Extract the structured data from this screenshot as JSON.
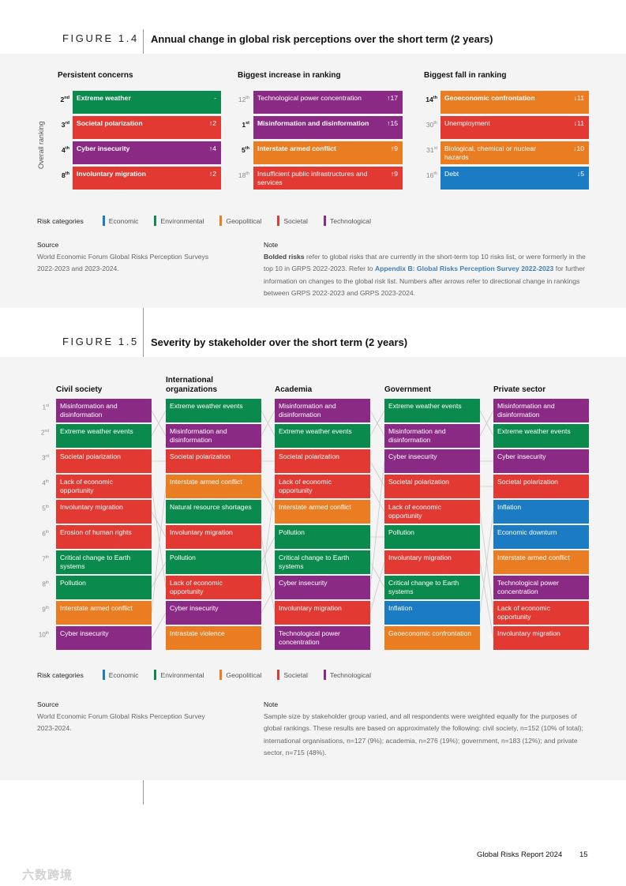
{
  "colors": {
    "economic": "#1b7cc4",
    "environmental": "#0a8a4c",
    "geopolitical": "#ea7d22",
    "societal": "#e23a33",
    "technological": "#8b2a85"
  },
  "fig14": {
    "label": "FIGURE 1.4",
    "title": "Annual change in global risk perceptions over the short term (2 years)",
    "y_axis": "Overall ranking",
    "columns": [
      {
        "heading": "Persistent concerns",
        "items": [
          {
            "rank": "2",
            "suffix": "nd",
            "label": "Extreme weather",
            "change": "-",
            "category": "environmental",
            "bold": true
          },
          {
            "rank": "3",
            "suffix": "rd",
            "label": "Societal polarization",
            "change": "↑2",
            "category": "societal",
            "bold": true
          },
          {
            "rank": "4",
            "suffix": "th",
            "label": "Cyber insecurity",
            "change": "↑4",
            "category": "technological",
            "bold": true
          },
          {
            "rank": "8",
            "suffix": "th",
            "label": "Involuntary migration",
            "change": "↑2",
            "category": "societal",
            "bold": true
          }
        ]
      },
      {
        "heading": "Biggest increase in ranking",
        "items": [
          {
            "rank": "12",
            "suffix": "th",
            "label": "Technological power concentration",
            "change": "↑17",
            "category": "technological",
            "bold": false
          },
          {
            "rank": "1",
            "suffix": "st",
            "label": "Misinformation and disinformation",
            "change": "↑15",
            "category": "technological",
            "bold": true
          },
          {
            "rank": "5",
            "suffix": "th",
            "label": "Interstate armed conflict",
            "change": "↑9",
            "category": "geopolitical",
            "bold": true
          },
          {
            "rank": "18",
            "suffix": "th",
            "label": "Insufficient public infrastructures and services",
            "change": "↑9",
            "category": "societal",
            "bold": false
          }
        ]
      },
      {
        "heading": "Biggest fall in ranking",
        "items": [
          {
            "rank": "14",
            "suffix": "th",
            "label": "Geoeconomic confrontation",
            "change": "↓11",
            "category": "geopolitical",
            "bold": true
          },
          {
            "rank": "30",
            "suffix": "th",
            "label": "Unemployment",
            "change": "↓11",
            "category": "societal",
            "bold": false
          },
          {
            "rank": "31",
            "suffix": "st",
            "label": "Biological, chemical or nuclear hazards",
            "change": "↓10",
            "category": "geopolitical",
            "bold": false
          },
          {
            "rank": "16",
            "suffix": "th",
            "label": "Debt",
            "change": "↓5",
            "category": "economic",
            "bold": false
          }
        ]
      }
    ],
    "legend": {
      "title": "Risk categories",
      "items": [
        "Economic",
        "Environmental",
        "Geopolitical",
        "Societal",
        "Technological"
      ]
    },
    "source": {
      "heading": "Source",
      "text": "World Economic Forum Global Risks Perception Surveys 2022-2023 and 2023-2024."
    },
    "note": {
      "heading": "Note",
      "bold_lead": "Bolded risks",
      "text1": " refer to global risks that are currently in the short-term top 10 risks list, or were formerly in the top 10 in GRPS 2022-2023. Refer to ",
      "link": "Appendix B: Global Risks Perception Survey 2022-2023",
      "text2": " for further information on changes to the global risk list. Numbers after arrows refer to directional change in rankings between GRPS 2022-2023 and GRPS 2023-2024."
    }
  },
  "fig15": {
    "label": "FIGURE 1.5",
    "title": "Severity by stakeholder over the short term (2 years)",
    "ranks": [
      {
        "n": "1",
        "s": "st"
      },
      {
        "n": "2",
        "s": "nd"
      },
      {
        "n": "3",
        "s": "rd"
      },
      {
        "n": "4",
        "s": "th"
      },
      {
        "n": "5",
        "s": "th"
      },
      {
        "n": "6",
        "s": "th"
      },
      {
        "n": "7",
        "s": "th"
      },
      {
        "n": "8",
        "s": "th"
      },
      {
        "n": "9",
        "s": "th"
      },
      {
        "n": "10",
        "s": "th"
      }
    ],
    "columns": [
      {
        "heading": "Civil society",
        "items": [
          {
            "label": "Misinformation and disinformation",
            "category": "technological"
          },
          {
            "label": "Extreme weather events",
            "category": "environmental"
          },
          {
            "label": "Societal polarization",
            "category": "societal"
          },
          {
            "label": "Lack of economic opportunity",
            "category": "societal"
          },
          {
            "label": "Involuntary migration",
            "category": "societal"
          },
          {
            "label": "Erosion of human rights",
            "category": "societal"
          },
          {
            "label": "Critical change to Earth systems",
            "category": "environmental"
          },
          {
            "label": "Pollution",
            "category": "environmental"
          },
          {
            "label": "Interstate armed conflict",
            "category": "geopolitical"
          },
          {
            "label": "Cyber insecurity",
            "category": "technological"
          }
        ]
      },
      {
        "heading": "International organizations",
        "items": [
          {
            "label": "Extreme weather events",
            "category": "environmental"
          },
          {
            "label": "Misinformation and disinformation",
            "category": "technological"
          },
          {
            "label": "Societal polarization",
            "category": "societal"
          },
          {
            "label": "Interstate armed conflict",
            "category": "geopolitical"
          },
          {
            "label": "Natural resource shortages",
            "category": "environmental"
          },
          {
            "label": "Involuntary migration",
            "category": "societal"
          },
          {
            "label": "Pollution",
            "category": "environmental"
          },
          {
            "label": "Lack of economic opportunity",
            "category": "societal"
          },
          {
            "label": "Cyber insecurity",
            "category": "technological"
          },
          {
            "label": "Intrastate violence",
            "category": "geopolitical"
          }
        ]
      },
      {
        "heading": "Academia",
        "items": [
          {
            "label": "Misinformation and disinformation",
            "category": "technological"
          },
          {
            "label": "Extreme weather events",
            "category": "environmental"
          },
          {
            "label": "Societal polarization",
            "category": "societal"
          },
          {
            "label": "Lack of economic opportunity",
            "category": "societal"
          },
          {
            "label": "Interstate armed conflict",
            "category": "geopolitical"
          },
          {
            "label": "Pollution",
            "category": "environmental"
          },
          {
            "label": "Critical change to Earth systems",
            "category": "environmental"
          },
          {
            "label": "Cyber insecurity",
            "category": "technological"
          },
          {
            "label": "Involuntary migration",
            "category": "societal"
          },
          {
            "label": "Technological power concentration",
            "category": "technological"
          }
        ]
      },
      {
        "heading": "Government",
        "items": [
          {
            "label": "Extreme weather events",
            "category": "environmental"
          },
          {
            "label": "Misinformation and disinformation",
            "category": "technological"
          },
          {
            "label": "Cyber insecurity",
            "category": "technological"
          },
          {
            "label": "Societal polarization",
            "category": "societal"
          },
          {
            "label": "Lack of economic opportunity",
            "category": "societal"
          },
          {
            "label": "Pollution",
            "category": "environmental"
          },
          {
            "label": "Involuntary migration",
            "category": "societal"
          },
          {
            "label": "Critical change to Earth systems",
            "category": "environmental"
          },
          {
            "label": "Inflation",
            "category": "economic"
          },
          {
            "label": "Geoeconomic confrontation",
            "category": "geopolitical"
          }
        ]
      },
      {
        "heading": "Private sector",
        "items": [
          {
            "label": "Misinformation and disinformation",
            "category": "technological"
          },
          {
            "label": "Extreme weather events",
            "category": "environmental"
          },
          {
            "label": "Cyber insecurity",
            "category": "technological"
          },
          {
            "label": "Societal polarization",
            "category": "societal"
          },
          {
            "label": "Inflation",
            "category": "economic"
          },
          {
            "label": "Economic downturn",
            "category": "economic"
          },
          {
            "label": "Interstate armed conflict",
            "category": "geopolitical"
          },
          {
            "label": "Technological power concentration",
            "category": "technological"
          },
          {
            "label": "Lack of economic opportunity",
            "category": "societal"
          },
          {
            "label": "Involuntary migration",
            "category": "societal"
          }
        ]
      }
    ],
    "legend": {
      "title": "Risk categories",
      "items": [
        "Economic",
        "Environmental",
        "Geopolitical",
        "Societal",
        "Technological"
      ]
    },
    "source": {
      "heading": "Source",
      "text": "World Economic Forum Global Risks Perception Survey 2023-2024."
    },
    "note": {
      "heading": "Note",
      "text": "Sample size by stakeholder group varied, and all respondents were weighted equally for the purposes of global rankings. These results are based on approximately the following: civil society, n=152 (10% of total); international organisations, n=127 (9%); academia, n=276 (19%); government, n=183 (12%); and private sector, n=715 (48%)."
    }
  },
  "footer": {
    "report": "Global Risks Report 2024",
    "page": "15"
  },
  "watermark": "六数跨境"
}
